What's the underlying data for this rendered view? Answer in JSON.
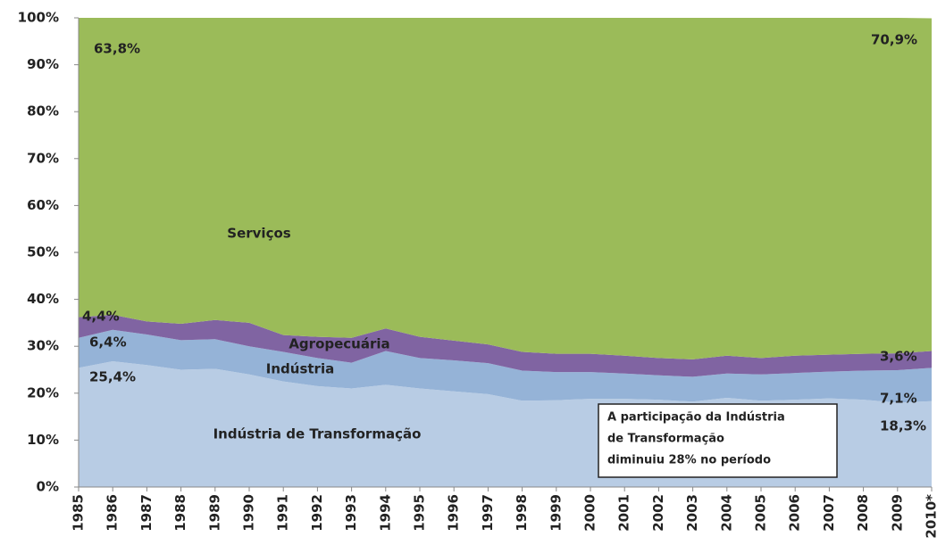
{
  "chart_data": {
    "type": "stacked-area",
    "categories": [
      "1985",
      "1986",
      "1987",
      "1988",
      "1989",
      "1990",
      "1991",
      "1992",
      "1993",
      "1994",
      "1995",
      "1996",
      "1997",
      "1998",
      "1999",
      "2000",
      "2001",
      "2002",
      "2003",
      "2004",
      "2005",
      "2006",
      "2007",
      "2008",
      "2009",
      "2010*"
    ],
    "series": [
      {
        "name": "Indústria de Transformação",
        "color": "#b8cce4",
        "values": [
          25.4,
          26.8,
          26.0,
          25.0,
          25.2,
          24.0,
          22.5,
          21.5,
          21.0,
          21.8,
          21.0,
          20.4,
          19.8,
          18.4,
          18.5,
          18.8,
          18.8,
          18.6,
          18.2,
          19.0,
          18.4,
          18.6,
          18.9,
          18.6,
          18.0,
          18.3
        ],
        "value_labels": [
          "25,4%",
          null,
          null,
          null,
          null,
          null,
          null,
          null,
          null,
          null,
          null,
          null,
          null,
          null,
          null,
          null,
          null,
          null,
          null,
          null,
          null,
          null,
          null,
          null,
          null,
          "18,3%"
        ]
      },
      {
        "name": "Indústria",
        "color": "#95b3d7",
        "values": [
          6.4,
          6.7,
          6.5,
          6.3,
          6.3,
          6.0,
          6.3,
          6.0,
          5.5,
          7.2,
          6.5,
          6.6,
          6.6,
          6.4,
          6.0,
          5.7,
          5.4,
          5.2,
          5.3,
          5.2,
          5.6,
          5.7,
          5.7,
          6.2,
          6.9,
          7.1
        ],
        "value_labels": [
          "6,4%",
          null,
          null,
          null,
          null,
          null,
          null,
          null,
          null,
          null,
          null,
          null,
          null,
          null,
          null,
          null,
          null,
          null,
          null,
          null,
          null,
          null,
          null,
          null,
          null,
          "7,1%"
        ]
      },
      {
        "name": "Agropecuária",
        "color": "#8064a2",
        "values": [
          4.4,
          3.2,
          2.8,
          3.5,
          4.1,
          5.0,
          3.6,
          4.5,
          5.3,
          4.8,
          4.5,
          4.2,
          4.0,
          4.0,
          3.9,
          3.9,
          3.8,
          3.7,
          3.7,
          3.8,
          3.5,
          3.7,
          3.6,
          3.6,
          3.6,
          3.6
        ],
        "value_labels": [
          "4,4%",
          null,
          null,
          null,
          null,
          null,
          null,
          null,
          null,
          null,
          null,
          null,
          null,
          null,
          null,
          null,
          null,
          null,
          null,
          null,
          null,
          null,
          null,
          null,
          null,
          "3,6%"
        ]
      },
      {
        "name": "Serviços",
        "color": "#9bbb59",
        "values": [
          63.8,
          63.3,
          64.7,
          65.2,
          64.4,
          65.0,
          67.6,
          68.0,
          68.2,
          66.2,
          68.0,
          68.8,
          69.6,
          71.2,
          71.6,
          71.6,
          72.0,
          72.5,
          72.8,
          72.0,
          72.5,
          72.0,
          71.8,
          71.6,
          71.5,
          70.9
        ],
        "value_labels": [
          "63,8%",
          null,
          null,
          null,
          null,
          null,
          null,
          null,
          null,
          null,
          null,
          null,
          null,
          null,
          null,
          null,
          null,
          null,
          null,
          null,
          null,
          null,
          null,
          null,
          null,
          "70,9%"
        ]
      }
    ],
    "ylim": [
      0,
      100
    ],
    "yticks": [
      {
        "value": 0,
        "label": "0%"
      },
      {
        "value": 10,
        "label": "10%"
      },
      {
        "value": 20,
        "label": "20%"
      },
      {
        "value": 30,
        "label": "30%"
      },
      {
        "value": 40,
        "label": "40%"
      },
      {
        "value": 50,
        "label": "50%"
      },
      {
        "value": 60,
        "label": "60%"
      },
      {
        "value": 70,
        "label": "70%"
      },
      {
        "value": 80,
        "label": "80%"
      },
      {
        "value": 90,
        "label": "90%"
      },
      {
        "value": 100,
        "label": "100%"
      }
    ],
    "annotation": [
      "A participação da Indústria",
      "de Transformação",
      "diminuiu 28% no período"
    ]
  }
}
